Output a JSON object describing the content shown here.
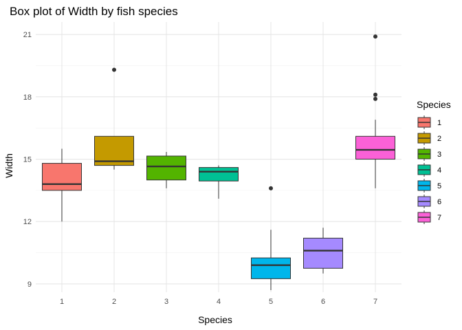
{
  "chart_data": {
    "type": "box",
    "title": "Box plot of Width by fish species",
    "xlabel": "Species",
    "ylabel": "Width",
    "categories": [
      "1",
      "2",
      "3",
      "4",
      "5",
      "6",
      "7"
    ],
    "ylim": [
      8.6,
      21.6
    ],
    "yticks": [
      "9",
      "12",
      "15",
      "18",
      "21"
    ],
    "grid": true,
    "legend": {
      "title": "Species",
      "position": "right"
    },
    "colors": [
      "#F8766D",
      "#C49A00",
      "#53B400",
      "#00C094",
      "#00B6EB",
      "#A58AFF",
      "#FB61D7"
    ],
    "boxes": [
      {
        "category": "1",
        "whisker_low": 12.0,
        "q1": 13.5,
        "median": 13.8,
        "q3": 14.8,
        "whisker_high": 15.5,
        "outliers": []
      },
      {
        "category": "2",
        "whisker_low": 14.5,
        "q1": 14.7,
        "median": 14.9,
        "q3": 16.1,
        "whisker_high": 16.1,
        "outliers": [
          19.3
        ]
      },
      {
        "category": "3",
        "whisker_low": 13.6,
        "q1": 14.0,
        "median": 14.65,
        "q3": 15.15,
        "whisker_high": 15.35,
        "outliers": []
      },
      {
        "category": "4",
        "whisker_low": 13.1,
        "q1": 13.95,
        "median": 14.4,
        "q3": 14.6,
        "whisker_high": 14.7,
        "outliers": []
      },
      {
        "category": "5",
        "whisker_low": 8.7,
        "q1": 9.25,
        "median": 9.9,
        "q3": 10.25,
        "whisker_high": 11.6,
        "outliers": [
          13.6
        ]
      },
      {
        "category": "6",
        "whisker_low": 9.5,
        "q1": 9.75,
        "median": 10.6,
        "q3": 11.2,
        "whisker_high": 11.7,
        "outliers": []
      },
      {
        "category": "7",
        "whisker_low": 13.6,
        "q1": 15.0,
        "median": 15.45,
        "q3": 16.1,
        "whisker_high": 16.9,
        "outliers": [
          17.9,
          18.1,
          20.9
        ]
      }
    ]
  }
}
